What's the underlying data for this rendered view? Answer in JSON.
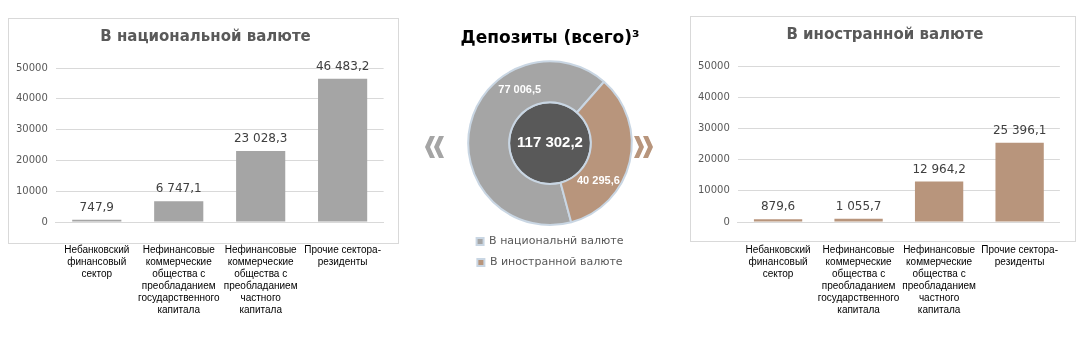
{
  "chart_data": [
    {
      "type": "bar",
      "title": "В национальной валюте",
      "categories": [
        "Небанковский финансовый сектор",
        "Нефинансовые коммерческие общества с преобладанием государственного капитала",
        "Нефинансовые коммерческие общества с преобладанием частного капитала",
        "Прочие сектора-резиденты"
      ],
      "values": [
        747.9,
        6747.1,
        23028.3,
        46483.2
      ],
      "value_labels": [
        "747,9",
        "6 747,1",
        "23 028,3",
        "46 483,2"
      ],
      "color": "#a5a5a5",
      "ylim": [
        0,
        50000
      ],
      "yticks": [
        0,
        10000,
        20000,
        30000,
        40000,
        50000
      ],
      "grid": "y"
    },
    {
      "type": "donut",
      "title": "Депозиты (всего)³",
      "categories": [
        "В национальнй валюте",
        "В иностранной валюте"
      ],
      "values": [
        77006.5,
        40295.6
      ],
      "value_labels": [
        "77 006,5",
        "40 295,6"
      ],
      "colors": [
        "#a5a5a5",
        "#b8957c"
      ],
      "legend": "bottom",
      "annotations": [
        "117 302,2"
      ]
    },
    {
      "type": "bar",
      "title": "В иностранной валюте",
      "categories": [
        "Небанковский финансовый сектор",
        "Нефинансовые коммерческие общества с преобладанием государственного капитала",
        "Нефинансовые коммерческие общества с преобладанием частного капитала",
        "Прочие сектора-резиденты"
      ],
      "values": [
        879.6,
        1055.7,
        12964.2,
        25396.1
      ],
      "value_labels": [
        "879,6",
        "1 055,7",
        "12 964,2",
        "25 396,1"
      ],
      "color": "#b8957c",
      "ylim": [
        0,
        50000
      ],
      "yticks": [
        0,
        10000,
        20000,
        30000,
        40000,
        50000
      ],
      "grid": "y"
    }
  ]
}
